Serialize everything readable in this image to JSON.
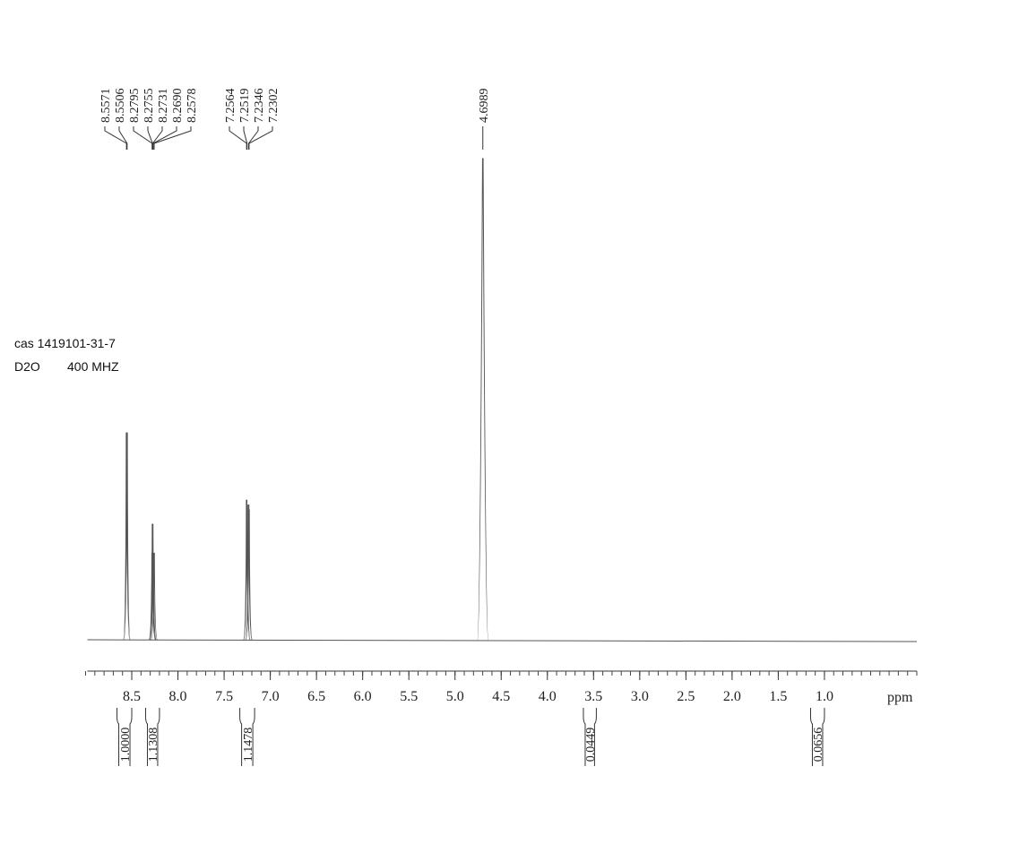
{
  "chart_data": {
    "type": "nmr",
    "annotations": [
      "cas 1419101-31-7",
      "D2O",
      "400 MHZ"
    ],
    "x_label": "ppm",
    "xlim": [
      9,
      0
    ],
    "xticks": [
      8.5,
      {
        "value": 8,
        "label": "8.0"
      },
      7.5,
      {
        "value": 7,
        "label": "7.0"
      },
      6.5,
      {
        "value": 6,
        "label": "6.0"
      },
      5.5,
      {
        "value": 5,
        "label": "5.0"
      },
      4.5,
      {
        "value": 4,
        "label": "4.0"
      },
      3.5,
      {
        "value": 3,
        "label": "3.0"
      },
      2.5,
      {
        "value": 2,
        "label": "2.0"
      },
      1.5,
      {
        "value": 1,
        "label": "1.0"
      }
    ],
    "minor_tick_step": 0.1,
    "ylim": [
      0,
      100
    ],
    "color": "#555555",
    "peaks": [
      {
        "value": 8.5571,
        "label": "8.5571",
        "height": 43
      },
      {
        "value": 8.5506,
        "label": "8.5506",
        "height": 43
      },
      {
        "value": 8.2795,
        "label": "8.2795",
        "height": 18
      },
      {
        "value": 8.2755,
        "label": "8.2755",
        "height": 24
      },
      {
        "value": 8.2731,
        "label": "8.2731",
        "height": 24
      },
      {
        "value": 8.269,
        "label": "8.2690",
        "height": 18
      },
      {
        "value": 8.2578,
        "label": "8.2578",
        "height": 18
      },
      {
        "value": 7.2564,
        "label": "7.2564",
        "height": 29
      },
      {
        "value": 7.2519,
        "label": "7.2519",
        "height": 28
      },
      {
        "value": 7.2346,
        "label": "7.2346",
        "height": 28
      },
      {
        "value": 7.2302,
        "label": "7.2302",
        "height": 27
      },
      {
        "value": 4.6989,
        "label": "4.6989",
        "height": 100
      }
    ],
    "integrals": {
      "ranges": [
        [
          8.66,
          8.5
        ],
        [
          8.35,
          8.2
        ],
        [
          7.33,
          7.17
        ],
        [
          3.61,
          3.47
        ],
        [
          1.15,
          1.0
        ]
      ],
      "values": [
        1,
        1.1308,
        1.1478,
        0.0449,
        0.0656
      ],
      "value_labels": [
        "1.0000",
        "1.1308",
        "1.1478",
        "0.0449",
        "0.0656"
      ]
    }
  }
}
